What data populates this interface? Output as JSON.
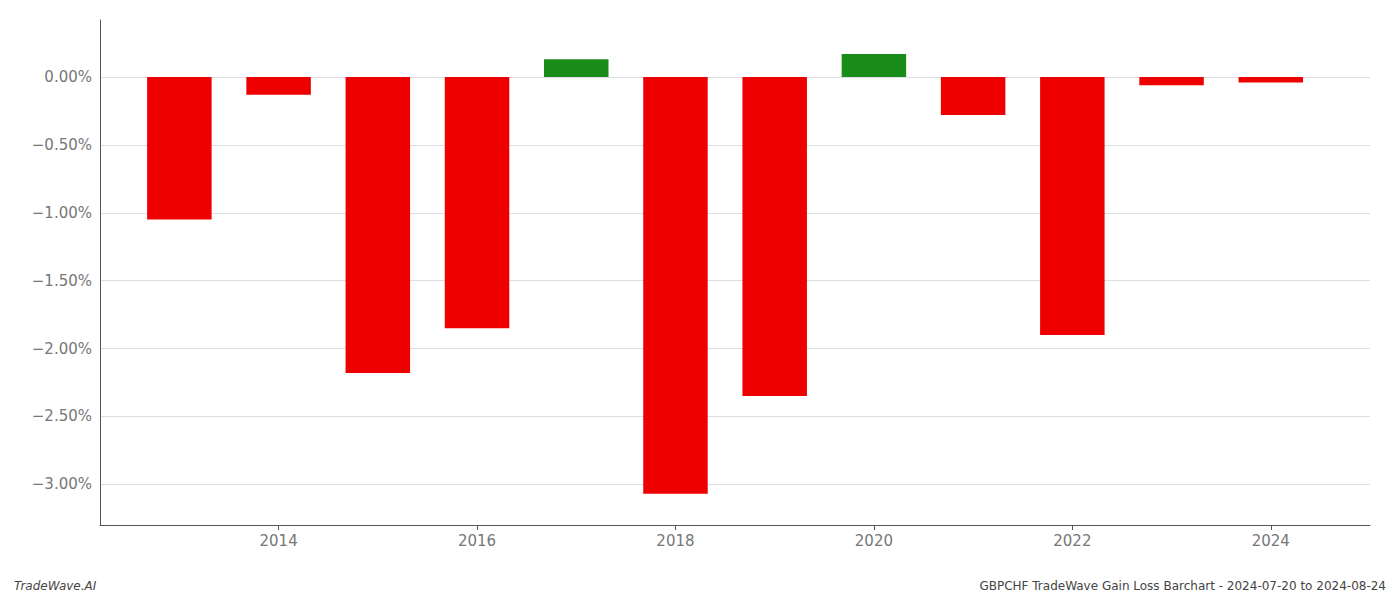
{
  "chart_data": {
    "type": "bar",
    "x": [
      2013,
      2014,
      2015,
      2016,
      2017,
      2018,
      2019,
      2020,
      2021,
      2022,
      2023,
      2024
    ],
    "values": [
      -1.05,
      -0.13,
      -2.18,
      -1.85,
      0.13,
      -3.07,
      -2.35,
      0.17,
      -0.28,
      -1.9,
      -0.06,
      -0.04
    ],
    "colors": [
      "#ee0000",
      "#ee0000",
      "#ee0000",
      "#ee0000",
      "#1a8c1a",
      "#ee0000",
      "#ee0000",
      "#1a8c1a",
      "#ee0000",
      "#ee0000",
      "#ee0000",
      "#ee0000"
    ],
    "xlim": [
      2012.2,
      2025.0
    ],
    "xticks": [
      2014,
      2016,
      2018,
      2020,
      2022,
      2024
    ],
    "ylim": [
      -3.3,
      0.42
    ],
    "yticks": [
      {
        "value": 0.0,
        "label": "0.00%"
      },
      {
        "value": -0.5,
        "label": "−0.50%"
      },
      {
        "value": -1.0,
        "label": "−1.00%"
      },
      {
        "value": -1.5,
        "label": "−1.50%"
      },
      {
        "value": -2.0,
        "label": "−2.00%"
      },
      {
        "value": -2.5,
        "label": "−2.50%"
      },
      {
        "value": -3.0,
        "label": "−3.00%"
      }
    ],
    "grid": true,
    "annotations": [
      "TradeWave.AI",
      "GBPCHF TradeWave Gain Loss Barchart - 2024-07-20 to 2024-08-24"
    ]
  }
}
